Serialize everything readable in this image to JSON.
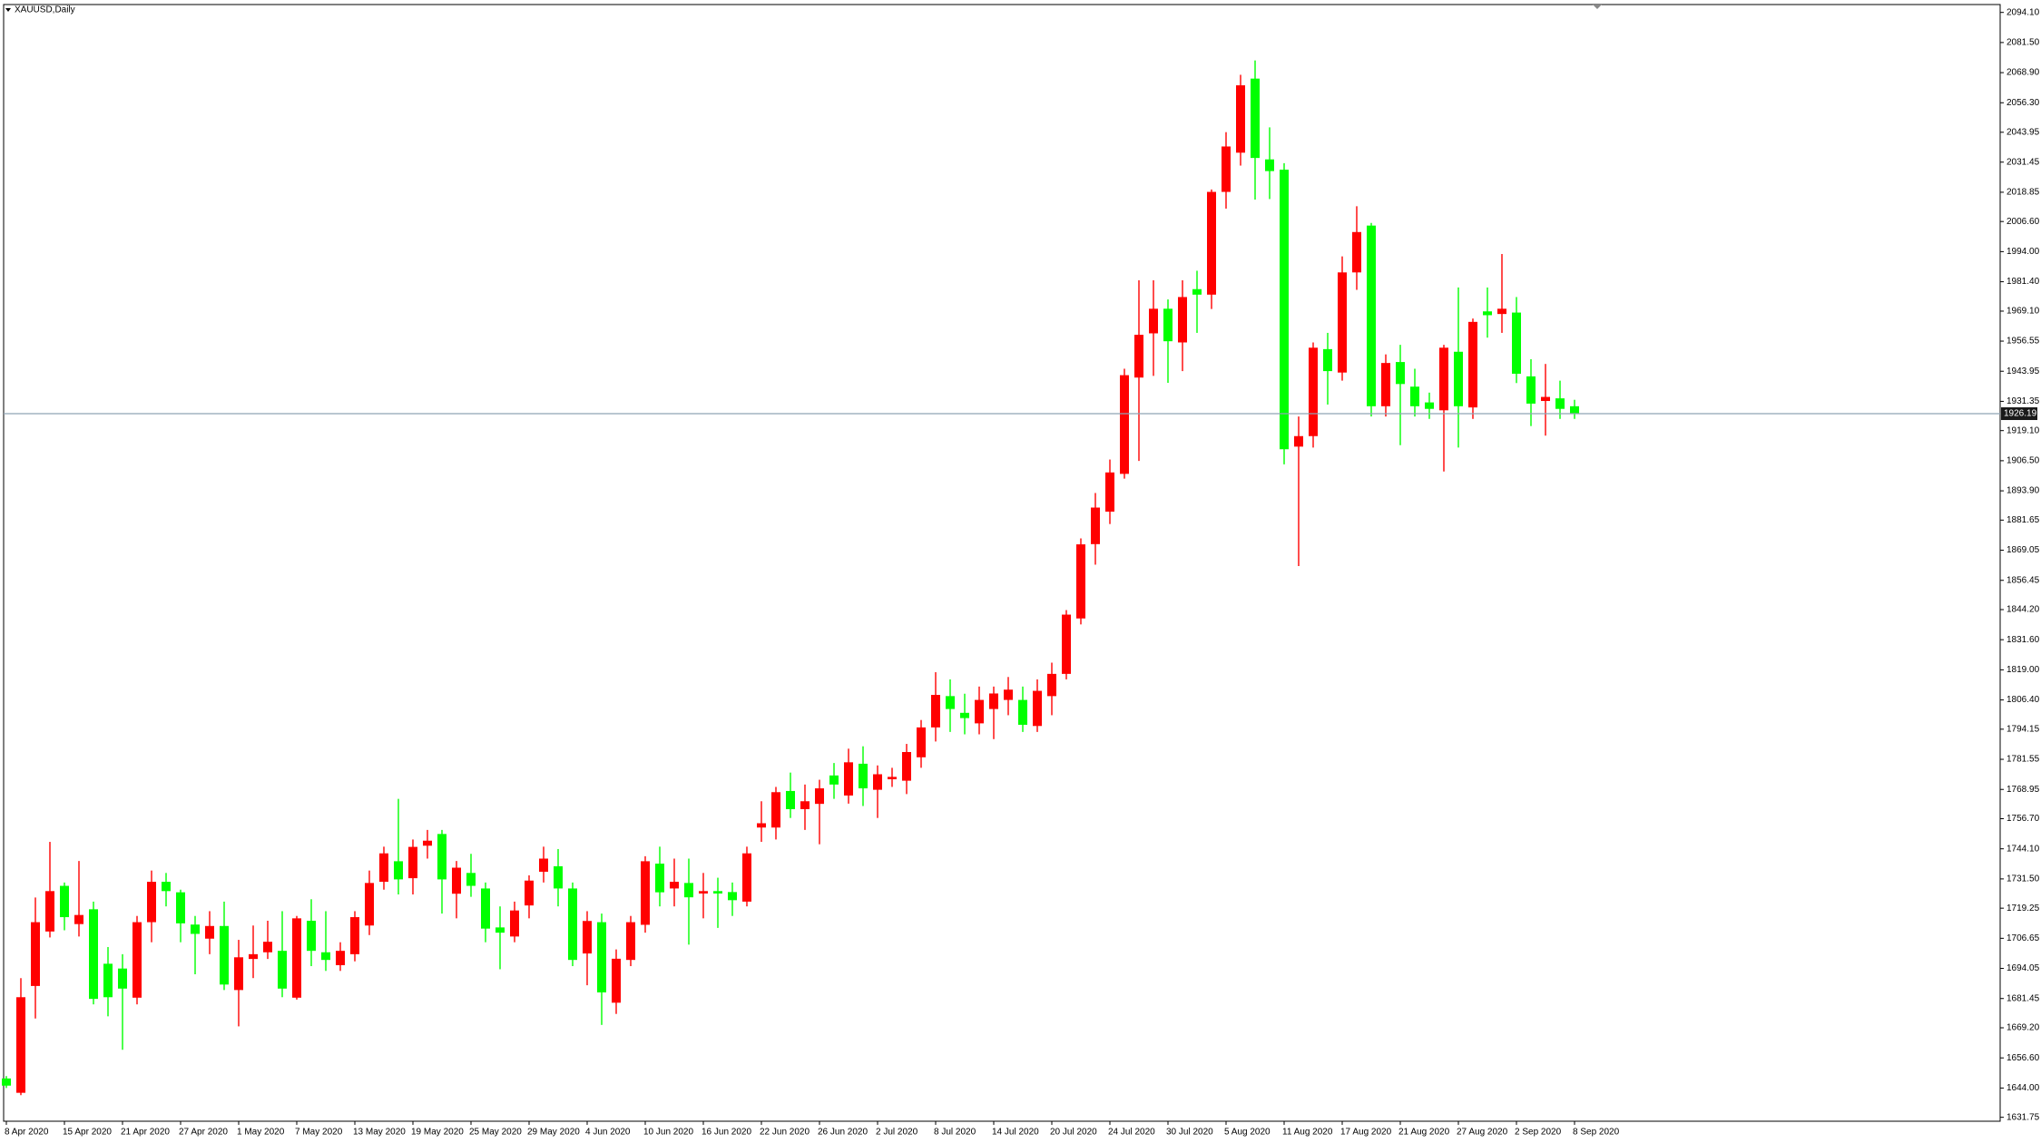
{
  "chart_data": {
    "type": "candlestick",
    "title": "XAUUSD,Daily",
    "up_color": "#ff0000",
    "down_color": "#00ff00",
    "current_price": 1926.19,
    "current_price_color": "#8fa3b5",
    "categories": [
      "8 Apr 2020",
      null,
      null,
      null,
      "15 Apr 2020",
      null,
      null,
      null,
      "21 Apr 2020",
      null,
      null,
      null,
      "27 Apr 2020",
      null,
      null,
      null,
      "1 May 2020",
      null,
      null,
      null,
      "7 May 2020",
      null,
      null,
      null,
      "13 May 2020",
      null,
      null,
      null,
      "19 May 2020",
      null,
      null,
      null,
      "25 May 2020",
      null,
      null,
      null,
      "29 May 2020",
      null,
      null,
      null,
      "4 Jun 2020",
      null,
      null,
      null,
      "10 Jun 2020",
      null,
      null,
      null,
      "16 Jun 2020",
      null,
      null,
      null,
      "22 Jun 2020",
      null,
      null,
      null,
      "26 Jun 2020",
      null,
      null,
      null,
      "2 Jul 2020",
      null,
      null,
      null,
      "8 Jul 2020",
      null,
      null,
      null,
      "14 Jul 2020",
      null,
      null,
      null,
      "20 Jul 2020",
      null,
      null,
      null,
      "24 Jul 2020",
      null,
      null,
      null,
      "30 Jul 2020",
      null,
      null,
      null,
      "5 Aug 2020",
      null,
      null,
      null,
      "11 Aug 2020",
      null,
      null,
      null,
      "17 Aug 2020",
      null,
      null,
      null,
      "21 Aug 2020",
      null,
      null,
      null,
      "27 Aug 2020",
      null,
      null,
      null,
      "2 Sep 2020",
      null,
      null,
      null,
      "8 Sep 2020"
    ],
    "open": [
      1648,
      1642,
      1686.7,
      1709.5,
      1728.6,
      1712.6,
      1718.8,
      1696,
      1694,
      1681.8,
      1713.4,
      1730.3,
      1725.9,
      1712.4,
      1706.5,
      1711.8,
      1685,
      1698,
      1700.8,
      1701.4,
      1681.8,
      1714,
      1700.8,
      1695.4,
      1700,
      1712,
      1730.3,
      1738.9,
      1731.8,
      1745.4,
      1750.3,
      1725.3,
      1734,
      1727.5,
      1711.2,
      1707.4,
      1720.4,
      1734.5,
      1736.8,
      1727.5,
      1700.3,
      1713.4,
      1679.7,
      1697.6,
      1712.3,
      1737.9,
      1727.5,
      1729.8,
      1725.4,
      1726.4,
      1726,
      1722,
      1753,
      1753,
      1768.3,
      1760.7,
      1762.9,
      1774.8,
      1766.4,
      1779.7,
      1768.8,
      1773.2,
      1772.6,
      1782.4,
      1794.9,
      1808,
      1801,
      1796.6,
      1802.6,
      1806.4,
      1806.4,
      1795.5,
      1808,
      1817.3,
      1840.5,
      1871.6,
      1885.2,
      1901,
      1941.3,
      1959.8,
      1970.1,
      1956,
      1978.3,
      1976,
      2019,
      2035.4,
      2066.4,
      2032.6,
      2028.3,
      1912.4,
      1916.8,
      1953.2,
      1943.4,
      1985.3,
      2004.9,
      1929.3,
      1947.8,
      1937.5,
      1930.9,
      1927.6,
      1952.1,
      1928.8,
      1969,
      1967.9,
      1968.5,
      1941.8,
      1931.5,
      1932.6,
      1929.3
    ],
    "high": [
      1649,
      1690,
      1723.7,
      1747,
      1730,
      1739,
      1722,
      1703,
      1700,
      1716,
      1735,
      1734,
      1727,
      1716,
      1718,
      1722,
      1706,
      1712,
      1714,
      1718,
      1716,
      1723,
      1718,
      1705,
      1718,
      1735,
      1745,
      1765,
      1748,
      1752,
      1752,
      1739,
      1742,
      1730,
      1720,
      1722,
      1733,
      1745,
      1744,
      1730,
      1718,
      1717,
      1702,
      1716,
      1741,
      1745,
      1740,
      1740,
      1734,
      1732,
      1730,
      1745,
      1764,
      1770,
      1776,
      1771,
      1773,
      1780,
      1786,
      1787,
      1779,
      1778,
      1788,
      1798,
      1818,
      1815,
      1809,
      1812,
      1812,
      1816,
      1812,
      1815,
      1822,
      1844,
      1874,
      1893,
      1907,
      1945,
      1982,
      1982,
      1974,
      1982,
      1986,
      2020,
      2044,
      2068,
      2074,
      2046,
      2031,
      1925,
      1956,
      1960,
      1992,
      2013,
      2006,
      1951,
      1955,
      1945,
      1935,
      1955,
      1979,
      1966,
      1979,
      1993,
      1975,
      1949,
      1947,
      1940,
      1932
    ],
    "low": [
      1644,
      1641,
      1673.1,
      1707,
      1710,
      1707.4,
      1679,
      1674,
      1660,
      1679,
      1705,
      1720,
      1705,
      1691.6,
      1700,
      1685,
      1669.8,
      1690,
      1698,
      1682,
      1681,
      1695,
      1693,
      1693,
      1697,
      1708,
      1727,
      1725,
      1725,
      1740,
      1717,
      1715,
      1724,
      1705,
      1693.7,
      1705,
      1715,
      1730,
      1720,
      1695,
      1687,
      1670.4,
      1675,
      1695,
      1709,
      1720,
      1720,
      1704,
      1715,
      1711,
      1716,
      1720,
      1747,
      1748,
      1757,
      1752,
      1746,
      1765,
      1763,
      1762,
      1757,
      1770,
      1767,
      1778,
      1789,
      1793,
      1792,
      1792,
      1790,
      1800,
      1793,
      1793,
      1800,
      1815,
      1838,
      1863,
      1880,
      1899,
      1906.4,
      1942,
      1939.1,
      1944,
      1960,
      1970,
      2012,
      2030,
      2015.8,
      2016,
      1905,
      1862.4,
      1912,
      1930,
      1940,
      1978,
      1925,
      1925,
      1913,
      1925,
      1924,
      1902,
      1912,
      1924,
      1958,
      1960,
      1939,
      1921,
      1917,
      1924,
      1924
    ],
    "close": [
      1645,
      1682,
      1713.4,
      1726.4,
      1715.5,
      1716.4,
      1681.3,
      1682,
      1685.6,
      1713.4,
      1730.3,
      1726.4,
      1712.9,
      1708.5,
      1711.8,
      1687.3,
      1698.7,
      1700,
      1705.2,
      1685.6,
      1715,
      1701.4,
      1697.6,
      1701.4,
      1715.5,
      1729.8,
      1742.2,
      1731.3,
      1744.9,
      1747.5,
      1731.3,
      1736.2,
      1728.6,
      1710.7,
      1709,
      1718.3,
      1730.8,
      1740,
      1727.5,
      1697.6,
      1713.9,
      1684,
      1698.1,
      1713.4,
      1738.9,
      1725.9,
      1730.3,
      1723.8,
      1726.4,
      1725.4,
      1722.6,
      1742.2,
      1754.8,
      1767.8,
      1760.7,
      1764,
      1769.4,
      1771,
      1780.3,
      1769.4,
      1775.3,
      1774.2,
      1784.6,
      1794.9,
      1808.5,
      1802.6,
      1798.8,
      1806.4,
      1809.1,
      1810.7,
      1796,
      1810.2,
      1817.3,
      1842.1,
      1871.5,
      1886.9,
      1901.6,
      1942.3,
      1959.2,
      1970.1,
      1956.5,
      1975,
      1976,
      2019,
      2038,
      2063.6,
      2033.2,
      2027.7,
      1911.3,
      1916.8,
      1953.8,
      1944,
      1985.3,
      2002.2,
      1929.3,
      1947.4,
      1938.6,
      1929.3,
      1928.2,
      1953.8,
      1929.3,
      1964.6,
      1967.4,
      1970.1,
      1942.9,
      1930.4,
      1933.2,
      1928.2,
      1926.2
    ],
    "ylim": [
      1630.1,
      2097.4
    ],
    "yticks": [
      {
        "value": 2094.1,
        "label": "2094.10"
      },
      {
        "value": 2081.5,
        "label": "2081.50"
      },
      {
        "value": 2068.9,
        "label": "2068.90"
      },
      {
        "value": 2056.3,
        "label": "2056.30"
      },
      2043.95,
      2031.45,
      2018.85,
      {
        "value": 2006.6,
        "label": "2006.60"
      },
      {
        "value": 1994,
        "label": "1994.00"
      },
      {
        "value": 1981.4,
        "label": "1981.40"
      },
      {
        "value": 1969.1,
        "label": "1969.10"
      },
      1956.55,
      1943.95,
      1931.35,
      {
        "value": 1919.1,
        "label": "1919.10"
      },
      {
        "value": 1906.5,
        "label": "1906.50"
      },
      {
        "value": 1893.9,
        "label": "1893.90"
      },
      1881.65,
      1869.05,
      1856.45,
      {
        "value": 1844.2,
        "label": "1844.20"
      },
      {
        "value": 1831.6,
        "label": "1831.60"
      },
      {
        "value": 1819,
        "label": "1819.00"
      },
      {
        "value": 1806.4,
        "label": "1806.40"
      },
      1794.15,
      1781.55,
      1768.95,
      {
        "value": 1756.7,
        "label": "1756.70"
      },
      {
        "value": 1744.1,
        "label": "1744.10"
      },
      {
        "value": 1731.5,
        "label": "1731.50"
      },
      1719.25,
      1706.65,
      1694.05,
      1681.45,
      {
        "value": 1669.2,
        "label": "1669.20"
      },
      {
        "value": 1656.6,
        "label": "1656.60"
      },
      {
        "value": 1644,
        "label": "1644.00"
      },
      1631.75
    ]
  }
}
